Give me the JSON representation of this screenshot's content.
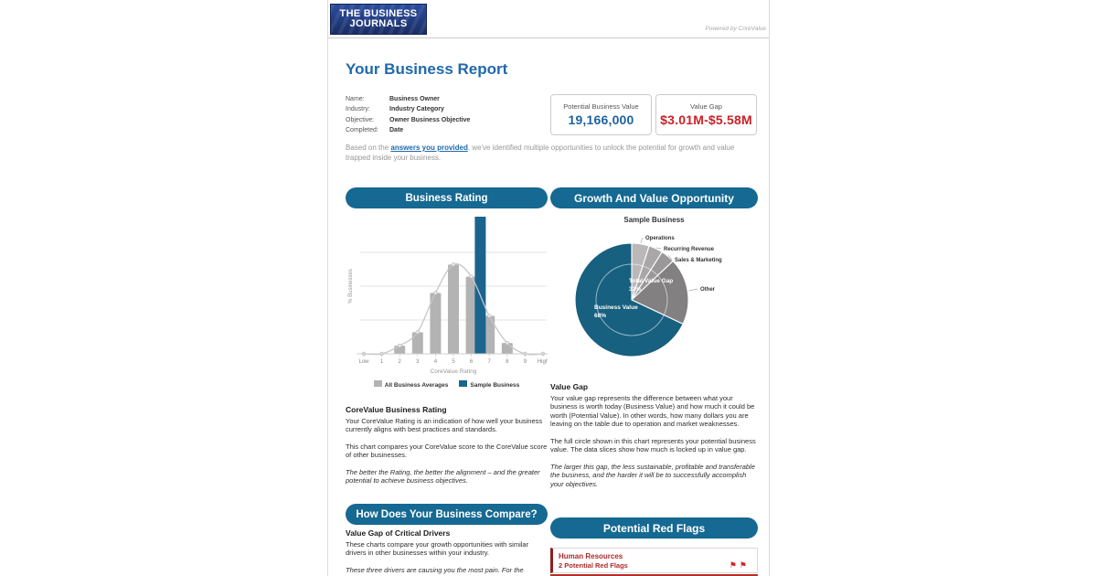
{
  "page": {
    "logo": {
      "line1": "THE BUSINESS",
      "line2": "JOURNALS"
    },
    "powered_by": "Powered by CoreValue",
    "title": "Your Business Report",
    "info": [
      {
        "label": "Name:",
        "value": "Business Owner"
      },
      {
        "label": "Industry:",
        "value": "Industry Category"
      },
      {
        "label": "Objective:",
        "value": "Owner Business Objective"
      },
      {
        "label": "Completed:",
        "value": "Date"
      }
    ],
    "metrics": [
      {
        "label": "Potential Business Value",
        "value": "19,166,000",
        "color": "#1e63a0"
      },
      {
        "label": "Value Gap",
        "value": "$3.01M-$5.58M",
        "color": "#cc2127"
      }
    ],
    "intro": {
      "pre": "Based on the ",
      "link": "answers you provided",
      "post": ", we've identified multiple opportunities to unlock the potential for growth and value trapped inside your business."
    }
  },
  "sections": {
    "rating_pill": "Business Rating",
    "growth_pill": "Growth And Value Opportunity",
    "compare_pill": "How Does Your Business Compare?",
    "redflags_pill": "Potential Red Flags",
    "rating_text": {
      "heading": "CoreValue Business Rating",
      "p1": "Your CoreValue Rating is an indication of how well your business currently aligns with best practices and standards.",
      "p2": "This chart compares your CoreValue score to the CoreValue score of other businesses.",
      "p3": "The better the Rating, the better the alignment – and the greater potential to achieve business objectives."
    },
    "valuegap_text": {
      "heading": "Value Gap",
      "p1": "Your value gap represents the difference between what your business is worth today (Business Value) and how much it could be worth (Potential Value). In other words, how many dollars you are leaving on the table due to operation and market weaknesses.",
      "p2": "The full circle shown in this chart represents your potential business value. The data slices show how much is locked up in value gap.",
      "p3": "The larger this gap, the less sustainable, profitable and transferable the business, and the harder it will be to successfully accomplish your objectives."
    },
    "compare_text": {
      "heading": "Value Gap of Critical Drivers",
      "p1": "These charts compare your growth opportunities with similar drivers in other businesses within your industry.",
      "p2": "These three drivers are causing you the most pain. For the"
    },
    "redflag_card": {
      "title": "Human Resources",
      "subtitle": "2 Potential Red Flags",
      "flag_icon": "red-flag-icon",
      "flag_count": 2,
      "accent_color": "#8e1f1f"
    }
  },
  "chart_data": [
    {
      "type": "bar",
      "title": "",
      "xlabel": "CoreValue Rating",
      "ylabel": "% Businesses",
      "categories": [
        "Low",
        "1",
        "2",
        "3",
        "4",
        "5",
        "6",
        "7",
        "8",
        "9",
        "High"
      ],
      "series": [
        {
          "name": "All Business Averages",
          "color": "#b3b3b3",
          "values": [
            0,
            0,
            6,
            16,
            45,
            66,
            57,
            28,
            8,
            0,
            0
          ]
        },
        {
          "name": "Sample Business",
          "color": "#1b648e",
          "x": 6.5,
          "value": 100
        }
      ],
      "curve": {
        "color": "#c6c6c6",
        "values": [
          0,
          0,
          6,
          16,
          45,
          66,
          57,
          28,
          8,
          0,
          0
        ]
      },
      "legend": [
        {
          "label": "All Business Averages",
          "color": "#b3b3b3"
        },
        {
          "label": "Sample Business",
          "color": "#1b648e"
        }
      ],
      "ylim": [
        0,
        100
      ],
      "gridlines": [
        25,
        50,
        75
      ],
      "legend_position": "bottom"
    },
    {
      "type": "pie",
      "title": "Sample Business",
      "slices": [
        {
          "label": "Operations",
          "pct": 5,
          "color": "#bab8b9"
        },
        {
          "label": "Recurring Revenue",
          "pct": 4,
          "color": "#a9a7a8"
        },
        {
          "label": "Sales & Marketing",
          "pct": 4,
          "color": "#9a9899"
        },
        {
          "label": "Other",
          "pct": 19,
          "color": "#838081"
        },
        {
          "label": "Business Value",
          "pct": 68,
          "color": "#17607f"
        }
      ],
      "center_labels": [
        {
          "title": "Total Value Gap",
          "pct": "32%"
        },
        {
          "title": "Business Value",
          "pct": "68%"
        }
      ],
      "gap_total_pct": 32
    }
  ]
}
